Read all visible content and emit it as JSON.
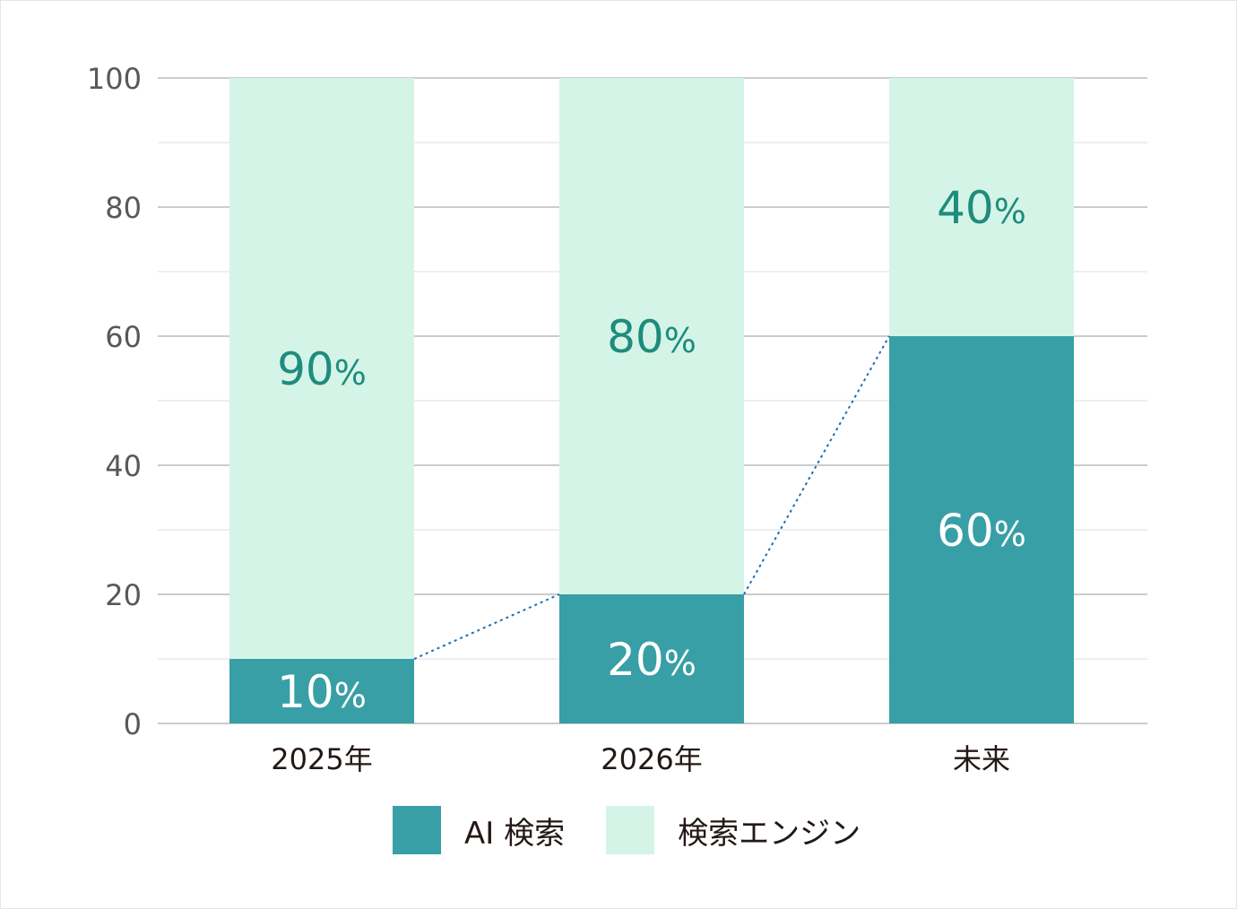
{
  "chart_data": {
    "type": "bar",
    "stacked": true,
    "title": "",
    "xlabel": "",
    "ylabel": "",
    "ylim": [
      0,
      100
    ],
    "yticks": [
      "0",
      "20",
      "40",
      "60",
      "80",
      "100"
    ],
    "categories": [
      "2025年",
      "2026年",
      "未来"
    ],
    "series": [
      {
        "name": "AI 検索",
        "values": [
          10,
          20,
          60
        ],
        "labels": [
          "10%",
          "20%",
          "60%"
        ],
        "color": "#389fa6"
      },
      {
        "name": "検索エンジン",
        "values": [
          90,
          80,
          40
        ],
        "labels": [
          "90%",
          "80%",
          "40%"
        ],
        "color": "#d5f4e8"
      }
    ],
    "connector_line": {
      "style": "dotted",
      "color": "#1a6fb5",
      "connects": "top of AI 検索 segments"
    },
    "grid": true,
    "legend_position": "bottom"
  },
  "legend": {
    "items": [
      {
        "label": "AI 検索",
        "color": "#389fa6"
      },
      {
        "label": "検索エンジン",
        "color": "#d5f4e8"
      }
    ]
  }
}
